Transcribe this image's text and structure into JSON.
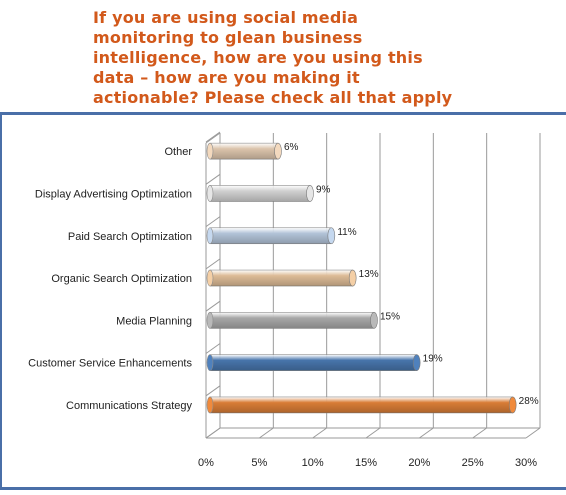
{
  "title_lines": [
    "If you are using social media",
    "monitoring to glean business",
    "intelligence, how are you using this",
    "data – how are you making it",
    "actionable? Please check all that apply"
  ],
  "chart_data": {
    "type": "bar",
    "orientation": "horizontal",
    "categories": [
      "Other",
      "Display Advertising Optimization",
      "Paid Search Optimization",
      "Organic Search Optimization",
      "Media Planning",
      "Customer Service Enhancements",
      "Communications Strategy"
    ],
    "values": [
      6,
      9,
      11,
      13,
      15,
      19,
      28
    ],
    "value_labels": [
      "6%",
      "9%",
      "11%",
      "13%",
      "15%",
      "19%",
      "28%"
    ],
    "bar_colors": [
      "#f3d9be",
      "#e6e6e6",
      "#c5d8ef",
      "#f4cfa6",
      "#b9b9b9",
      "#4f81bd",
      "#f08a3c"
    ],
    "xlim": [
      0,
      30
    ],
    "x_ticks": [
      0,
      5,
      10,
      15,
      20,
      25,
      30
    ],
    "x_tick_labels": [
      "0%",
      "5%",
      "10%",
      "15%",
      "20%",
      "25%",
      "30%"
    ],
    "grid": true,
    "legend": "none"
  }
}
